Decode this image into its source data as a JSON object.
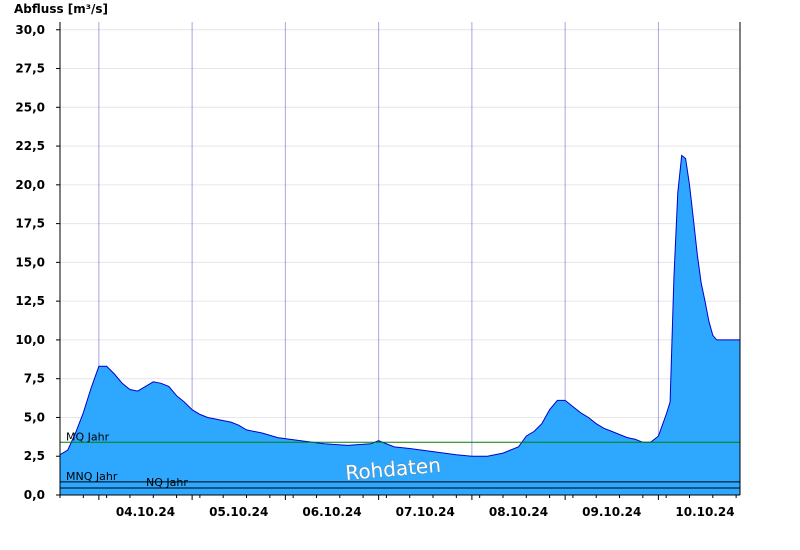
{
  "chart_data": {
    "type": "area",
    "title": "",
    "ylabel": "Abfluss [m³/s]",
    "xlabel": "",
    "ylim": [
      0,
      30.5
    ],
    "yticks": [
      "0,0",
      "2,5",
      "5,0",
      "7,5",
      "10,0",
      "12,5",
      "15,0",
      "17,5",
      "20,0",
      "22,5",
      "25,0",
      "27,5",
      "30,0"
    ],
    "x_start": "03.10.24 14:00",
    "x_end": "10.10.24 21:00",
    "xticks": [
      "04.10.24",
      "05.10.24",
      "06.10.24",
      "07.10.24",
      "08.10.24",
      "09.10.24",
      "10.10.24"
    ],
    "watermark": "Rohdaten",
    "colors": {
      "fill": "#2ea8ff",
      "line": "#0000cc",
      "mq": "#008000",
      "mnq": "#000000",
      "nq": "#000000"
    },
    "reference_lines": [
      {
        "name": "MQ Jahr",
        "value": 3.4
      },
      {
        "name": "MNQ Jahr",
        "value": 0.85
      },
      {
        "name": "NQ Jahr",
        "value": 0.45
      }
    ],
    "series": [
      {
        "x": [
          "03.10.24 14:00",
          "03.10.24 16:00",
          "03.10.24 18:00",
          "03.10.24 20:00",
          "03.10.24 22:00",
          "04.10.24 00:00",
          "04.10.24 02:00",
          "04.10.24 04:00",
          "04.10.24 06:00",
          "04.10.24 08:00",
          "04.10.24 10:00",
          "04.10.24 12:00",
          "04.10.24 14:00",
          "04.10.24 16:00",
          "04.10.24 18:00",
          "04.10.24 20:00",
          "04.10.24 22:00",
          "05.10.24 00:00",
          "05.10.24 02:00",
          "05.10.24 04:00",
          "05.10.24 06:00",
          "05.10.24 08:00",
          "05.10.24 10:00",
          "05.10.24 12:00",
          "05.10.24 14:00",
          "05.10.24 18:00",
          "05.10.24 22:00",
          "06.10.24 04:00",
          "06.10.24 10:00",
          "06.10.24 16:00",
          "06.10.24 22:00",
          "07.10.24 00:00",
          "07.10.24 04:00",
          "07.10.24 08:00",
          "07.10.24 14:00",
          "07.10.24 20:00",
          "08.10.24 00:00",
          "08.10.24 04:00",
          "08.10.24 08:00",
          "08.10.24 12:00",
          "08.10.24 14:00",
          "08.10.24 16:00",
          "08.10.24 18:00",
          "08.10.24 20:00",
          "08.10.24 22:00",
          "09.10.24 00:00",
          "09.10.24 02:00",
          "09.10.24 04:00",
          "09.10.24 06:00",
          "09.10.24 08:00",
          "09.10.24 10:00",
          "09.10.24 12:00",
          "09.10.24 14:00",
          "09.10.24 16:00",
          "09.10.24 18:00",
          "09.10.24 20:00",
          "09.10.24 22:00",
          "10.10.24 00:00",
          "10.10.24 02:00",
          "10.10.24 03:00",
          "10.10.24 04:00",
          "10.10.24 05:00",
          "10.10.24 06:00",
          "10.10.24 07:00",
          "10.10.24 08:00",
          "10.10.24 09:00",
          "10.10.24 10:00",
          "10.10.24 11:00",
          "10.10.24 12:00",
          "10.10.24 13:00",
          "10.10.24 14:00",
          "10.10.24 15:00",
          "10.10.24 16:00",
          "10.10.24 17:00",
          "10.10.24 18:00",
          "10.10.24 19:00",
          "10.10.24 20:00",
          "10.10.24 21:00"
        ],
        "values": [
          2.6,
          2.9,
          4.0,
          5.3,
          6.9,
          8.3,
          8.3,
          7.8,
          7.2,
          6.8,
          6.7,
          7.0,
          7.3,
          7.2,
          7.0,
          6.4,
          6.0,
          5.5,
          5.2,
          5.0,
          4.9,
          4.8,
          4.7,
          4.5,
          4.2,
          4.0,
          3.7,
          3.5,
          3.3,
          3.2,
          3.3,
          3.5,
          3.1,
          3.0,
          2.8,
          2.6,
          2.5,
          2.5,
          2.7,
          3.1,
          3.8,
          4.1,
          4.6,
          5.5,
          6.1,
          6.1,
          5.7,
          5.3,
          5.0,
          4.6,
          4.3,
          4.1,
          3.9,
          3.7,
          3.6,
          3.4,
          3.4,
          3.8,
          5.2,
          6.0,
          14.0,
          19.5,
          21.9,
          21.7,
          20.0,
          17.8,
          15.5,
          13.7,
          12.5,
          11.2,
          10.3,
          10.0,
          10.0,
          10.0,
          10.0,
          10.0,
          10.0,
          10.0
        ]
      }
    ]
  }
}
